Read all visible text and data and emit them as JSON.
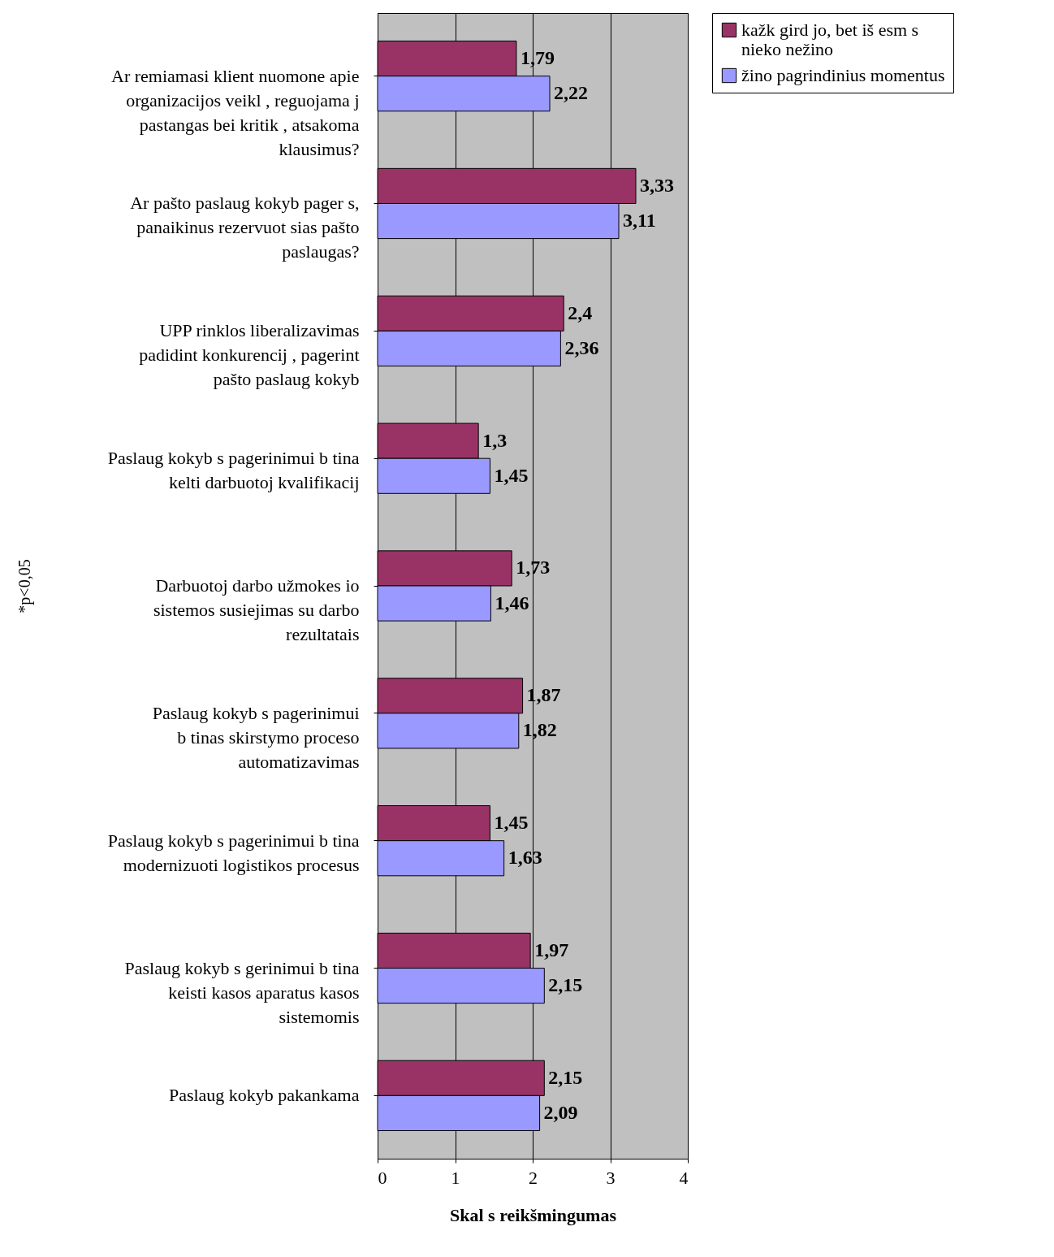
{
  "chart_data": {
    "type": "bar",
    "orientation": "horizontal",
    "ylabel": "*p<0,05",
    "xlabel": "Skal  s reikšmingumas",
    "categories": [
      "Ar remiamasi klient  nuomone apie\norganizacijos veikl , reguojama   j\npastangas bei kritik , atsakoma\nklausimus?",
      "Ar pašto paslaug  kokyb  pager s,\npanaikinus rezervuot  sias pašto\npaslaugas?",
      "UPP rinklos liberalizavimas\npadidint  konkurencij , pagerint\npašto paslaug  kokyb",
      "Paslaug  kokyb s pagerinimui b tina\nkelti darbuotoj   kvalifikacij",
      "Darbuotoj  darbo užmokes io\nsistemos susiejimas su darbo\nrezultatais",
      "Paslaug  kokyb s pagerinimui\nb tinas skirstymo proceso\nautomatizavimas",
      "Paslaug  kokyb s pagerinimui b tina\nmodernizuoti logistikos procesus",
      "Paslaug  kokyb s gerinimui b tina\nkeisti kasos aparatus kasos\nsistemomis",
      "Paslaug  kokyb  pakankama"
    ],
    "series": [
      {
        "name": "kažk  gird jo, bet iš esm s\nnieko nežino",
        "color": "#993366",
        "values": [
          1.79,
          3.33,
          2.4,
          1.3,
          1.73,
          1.87,
          1.45,
          1.97,
          2.15
        ],
        "value_labels": [
          "1,79",
          "3,33",
          "2,4",
          "1,3",
          "1,73",
          "1,87",
          "1,45",
          "1,97",
          "2,15"
        ]
      },
      {
        "name": "žino pagrindinius momentus",
        "color": "#9999ff",
        "values": [
          2.22,
          3.11,
          2.36,
          1.45,
          1.46,
          1.82,
          1.63,
          2.15,
          2.09
        ],
        "value_labels": [
          "2,22",
          "3,11",
          "2,36",
          "1,45",
          "1,46",
          "1,82",
          "1,63",
          "2,15",
          "2,09"
        ]
      }
    ],
    "xlim": [
      0,
      4
    ],
    "xticks": [
      0,
      1,
      2,
      3,
      4
    ],
    "grid": "x",
    "legend": "right"
  }
}
